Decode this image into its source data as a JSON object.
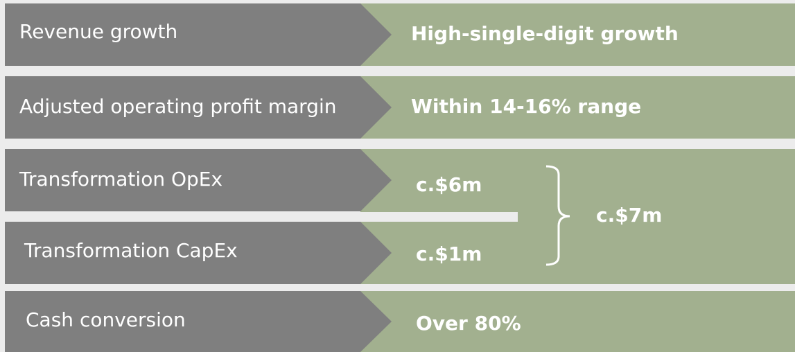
{
  "rows": [
    {
      "label": "Revenue growth",
      "value": "High-single-digit growth"
    },
    {
      "label": "Adjusted operating profit margin",
      "value": "Within 14-16% range"
    },
    {
      "label": "Transformation OpEx",
      "value": "c.$6m"
    },
    {
      "label": "Transformation CapEx",
      "value": "c.$1m"
    },
    {
      "label": "Cash conversion",
      "value": "Over 80%"
    }
  ],
  "combined": "c.$7m"
}
